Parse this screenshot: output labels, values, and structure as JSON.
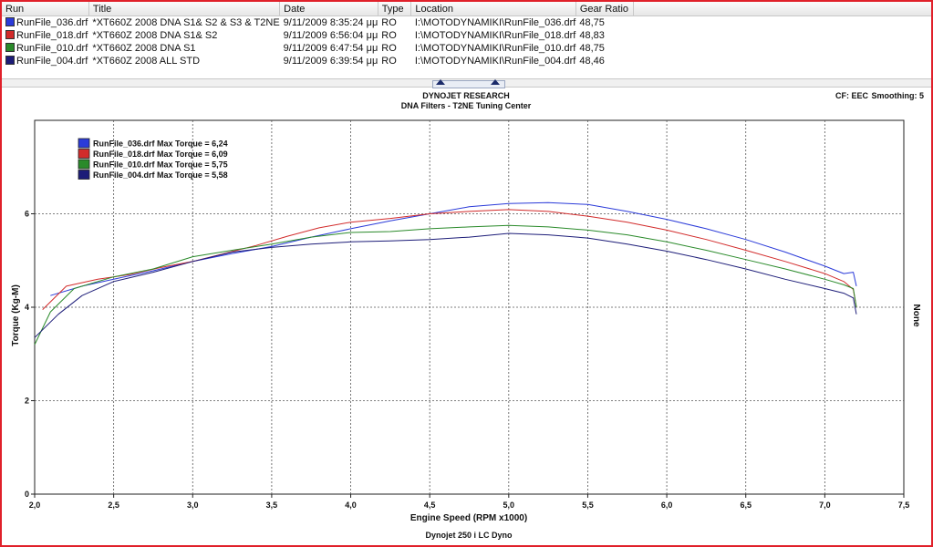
{
  "runs_table": {
    "columns": [
      "Run",
      "Title",
      "Date",
      "Type",
      "Location",
      "Gear Ratio"
    ],
    "rows": [
      {
        "run": "RunFile_036.drf",
        "title": "*XT660Z 2008 DNA S1& S2 & S3 & T2NE",
        "date": "9/11/2009 8:35:24 μμ",
        "type": "RO",
        "location": "I:\\MOTODYNAMIKI\\RunFile_036.drf",
        "gear_ratio": "48,75",
        "color": "#2b3bd9"
      },
      {
        "run": "RunFile_018.drf",
        "title": "*XT660Z 2008 DNA S1& S2",
        "date": "9/11/2009 6:56:04 μμ",
        "type": "RO",
        "location": "I:\\MOTODYNAMIKI\\RunFile_018.drf",
        "gear_ratio": "48,83",
        "color": "#d22b2b"
      },
      {
        "run": "RunFile_010.drf",
        "title": "*XT660Z 2008 DNA S1",
        "date": "9/11/2009 6:47:54 μμ",
        "type": "RO",
        "location": "I:\\MOTODYNAMIKI\\RunFile_010.drf",
        "gear_ratio": "48,75",
        "color": "#2a8a2a"
      },
      {
        "run": "RunFile_004.drf",
        "title": "*XT660Z 2008 ALL STD",
        "date": "9/11/2009 6:39:54 μμ",
        "type": "RO",
        "location": "I:\\MOTODYNAMIKI\\RunFile_004.drf",
        "gear_ratio": "48,46",
        "color": "#1c1c78"
      }
    ]
  },
  "chart_header": {
    "line1": "DYNOJET RESEARCH",
    "line2": "DNA Filters - T2NE Tuning Center",
    "cf_label": "CF: EEC",
    "smoothing_label": "Smoothing: 5"
  },
  "chart_data": {
    "type": "line",
    "xlabel": "Engine Speed (RPM x1000)",
    "ylabel": "Torque (Kg-M)",
    "right_axis_label": "None",
    "footer": "Dynojet 250 i LC Dyno",
    "xlim": [
      2.0,
      7.5
    ],
    "ylim": [
      0,
      8
    ],
    "x_ticks": [
      "2,0",
      "2,5",
      "3,0",
      "3,5",
      "4,0",
      "4,5",
      "5,0",
      "5,5",
      "6,0",
      "6,5",
      "7,0",
      "7,5"
    ],
    "y_ticks": [
      "0",
      "2",
      "4",
      "6"
    ],
    "y_tick_values": [
      0,
      2,
      4,
      6
    ],
    "x_tick_values": [
      2.0,
      2.5,
      3.0,
      3.5,
      4.0,
      4.5,
      5.0,
      5.5,
      6.0,
      6.5,
      7.0,
      7.5
    ],
    "grid": true,
    "legend_position": "top-left",
    "legend": [
      "RunFile_036.drf Max Torque = 6,24",
      "RunFile_018.drf Max Torque = 6,09",
      "RunFile_010.drf Max Torque = 5,75",
      "RunFile_004.drf Max Torque = 5,58"
    ],
    "series": [
      {
        "color": "#2b3bd9",
        "x": [
          2.1,
          2.3,
          2.5,
          2.75,
          3.0,
          3.25,
          3.5,
          3.75,
          4.0,
          4.25,
          4.5,
          4.75,
          5.0,
          5.25,
          5.5,
          5.75,
          6.0,
          6.25,
          6.5,
          6.75,
          7.0,
          7.12,
          7.18,
          7.2
        ],
        "y": [
          4.25,
          4.45,
          4.6,
          4.78,
          4.98,
          5.15,
          5.3,
          5.5,
          5.68,
          5.85,
          6.0,
          6.15,
          6.22,
          6.24,
          6.2,
          6.05,
          5.88,
          5.68,
          5.45,
          5.18,
          4.88,
          4.72,
          4.75,
          4.45
        ]
      },
      {
        "color": "#d22b2b",
        "x": [
          2.05,
          2.2,
          2.4,
          2.6,
          2.8,
          3.0,
          3.2,
          3.4,
          3.6,
          3.8,
          4.0,
          4.25,
          4.5,
          4.75,
          5.0,
          5.25,
          5.5,
          5.75,
          6.0,
          6.25,
          6.5,
          6.75,
          7.0,
          7.12,
          7.18,
          7.2
        ],
        "y": [
          3.95,
          4.45,
          4.6,
          4.7,
          4.85,
          4.98,
          5.15,
          5.32,
          5.52,
          5.7,
          5.82,
          5.9,
          6.0,
          6.05,
          6.09,
          6.05,
          5.95,
          5.82,
          5.65,
          5.45,
          5.22,
          4.98,
          4.72,
          4.55,
          4.38,
          4.0
        ]
      },
      {
        "color": "#2a8a2a",
        "x": [
          2.0,
          2.1,
          2.25,
          2.5,
          2.75,
          3.0,
          3.25,
          3.5,
          3.75,
          4.0,
          4.25,
          4.5,
          4.75,
          5.0,
          5.25,
          5.5,
          5.75,
          6.0,
          6.25,
          6.5,
          6.75,
          7.0,
          7.12,
          7.18,
          7.2
        ],
        "y": [
          3.2,
          3.9,
          4.4,
          4.65,
          4.82,
          5.08,
          5.22,
          5.35,
          5.5,
          5.6,
          5.62,
          5.68,
          5.72,
          5.75,
          5.72,
          5.65,
          5.55,
          5.4,
          5.22,
          5.02,
          4.82,
          4.6,
          4.48,
          4.4,
          4.0
        ]
      },
      {
        "color": "#1c1c78",
        "x": [
          2.0,
          2.15,
          2.3,
          2.5,
          2.75,
          3.0,
          3.25,
          3.5,
          3.75,
          4.0,
          4.25,
          4.5,
          4.75,
          5.0,
          5.25,
          5.5,
          5.75,
          6.0,
          6.25,
          6.5,
          6.75,
          7.0,
          7.12,
          7.18,
          7.2
        ],
        "y": [
          3.35,
          3.85,
          4.25,
          4.55,
          4.75,
          4.98,
          5.18,
          5.28,
          5.35,
          5.4,
          5.42,
          5.45,
          5.5,
          5.58,
          5.55,
          5.48,
          5.35,
          5.2,
          5.02,
          4.82,
          4.6,
          4.4,
          4.3,
          4.2,
          3.85
        ]
      }
    ]
  }
}
